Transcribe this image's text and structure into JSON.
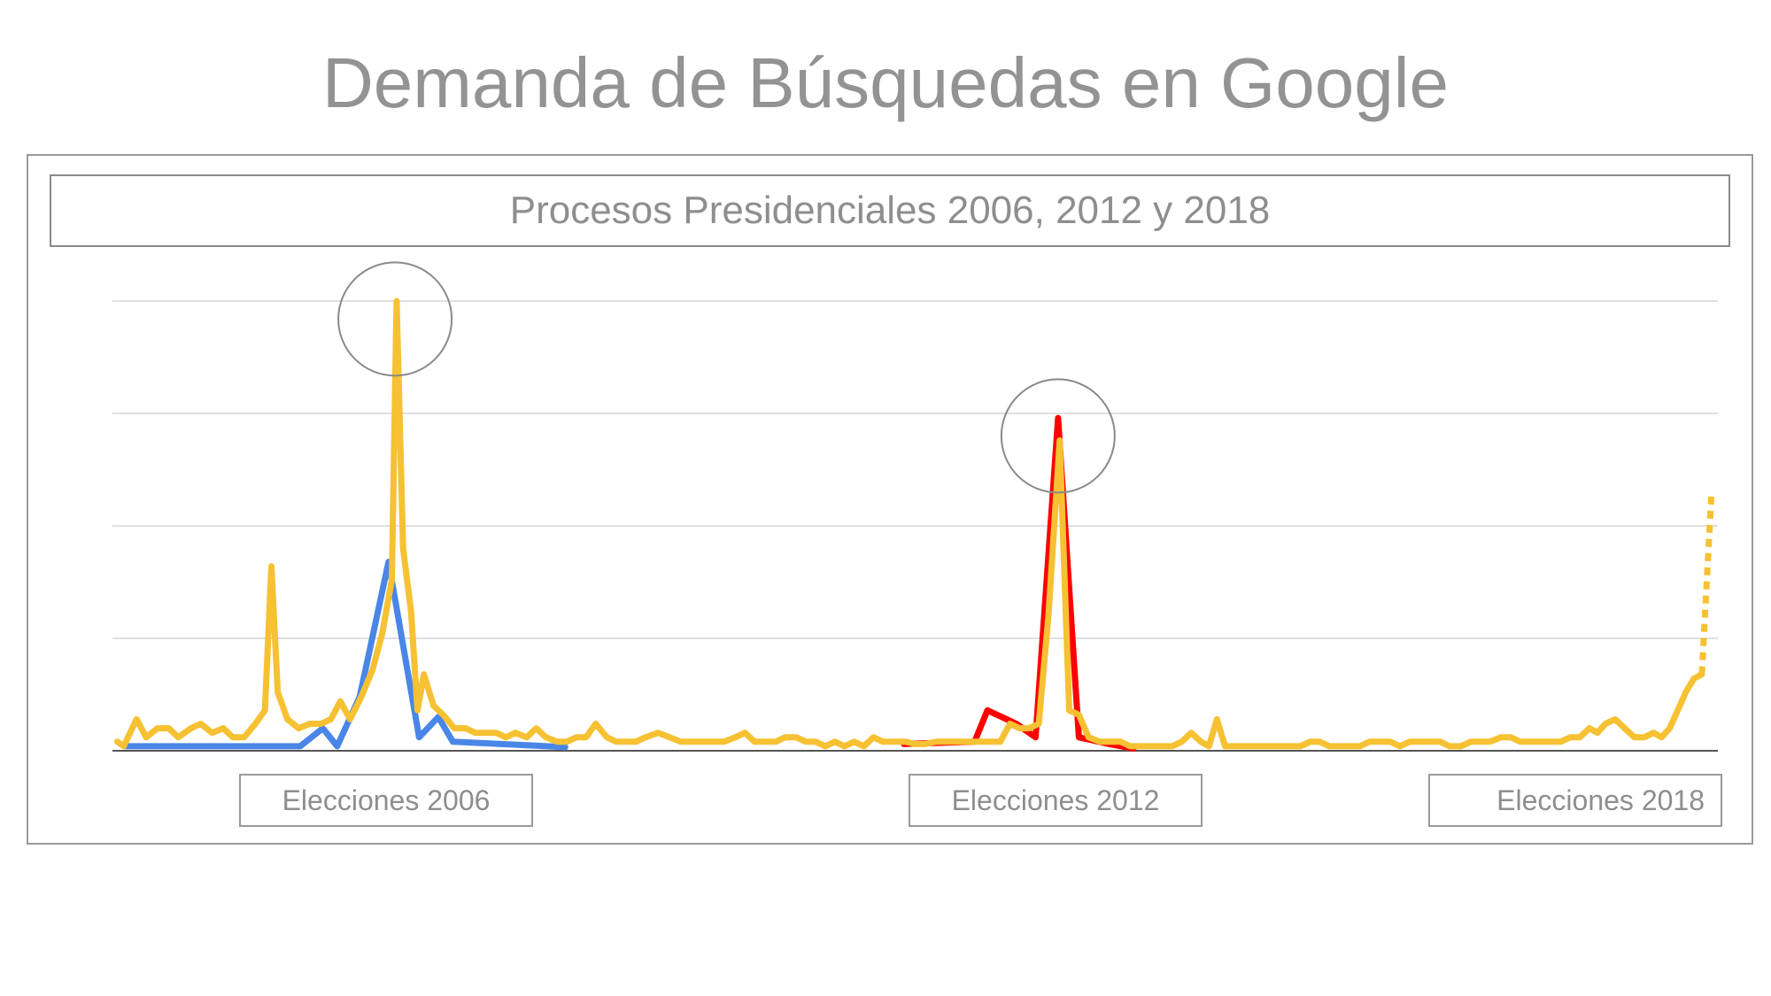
{
  "title": "Demanda de Búsquedas en Google",
  "chart_data": {
    "type": "line",
    "title": "Procesos Presidenciales 2006, 2012 y 2018",
    "xlabel": "",
    "ylabel": "",
    "x_range": [
      0,
      100
    ],
    "ylim": [
      0,
      100
    ],
    "grid": true,
    "gridlines": [
      0,
      25,
      50,
      75,
      100
    ],
    "period_labels": [
      "Elecciones 2006",
      "Elecciones 2012",
      "Elecciones 2018"
    ],
    "highlights": [
      {
        "x": 17.6,
        "y": 96
      },
      {
        "x": 58.9,
        "y": 70
      }
    ],
    "series": [
      {
        "color": "#4a86e8",
        "points": [
          [
            0.8,
            1
          ],
          [
            11.7,
            1
          ],
          [
            13.1,
            5
          ],
          [
            14.0,
            1
          ],
          [
            15.4,
            12
          ],
          [
            17.2,
            42
          ],
          [
            19.1,
            3
          ],
          [
            20.3,
            7.5
          ],
          [
            21.2,
            2
          ],
          [
            28.2,
            0.8
          ]
        ]
      },
      {
        "color": "#ff0000",
        "points": [
          [
            49.3,
            1.5
          ],
          [
            53.7,
            2
          ],
          [
            54.5,
            9
          ],
          [
            56.3,
            6
          ],
          [
            57.5,
            3
          ],
          [
            58.9,
            74
          ],
          [
            60.2,
            3
          ],
          [
            62.1,
            1.5
          ],
          [
            63.6,
            0.5
          ]
        ]
      },
      {
        "color": "#f6c132",
        "points": [
          [
            0.3,
            2
          ],
          [
            0.7,
            1
          ],
          [
            1.5,
            7
          ],
          [
            2.1,
            3
          ],
          [
            2.8,
            5
          ],
          [
            3.5,
            5
          ],
          [
            4.1,
            3
          ],
          [
            4.9,
            5
          ],
          [
            5.5,
            6
          ],
          [
            6.2,
            4
          ],
          [
            6.9,
            5
          ],
          [
            7.5,
            3
          ],
          [
            8.2,
            3
          ],
          [
            8.9,
            6
          ],
          [
            9.5,
            9
          ],
          [
            9.9,
            41
          ],
          [
            10.3,
            13
          ],
          [
            10.9,
            7
          ],
          [
            11.6,
            5
          ],
          [
            12.3,
            6
          ],
          [
            13.0,
            6
          ],
          [
            13.6,
            7
          ],
          [
            14.2,
            11
          ],
          [
            14.8,
            7
          ],
          [
            15.5,
            12
          ],
          [
            16.2,
            18
          ],
          [
            16.8,
            26
          ],
          [
            17.4,
            38
          ],
          [
            17.7,
            100
          ],
          [
            18.1,
            45
          ],
          [
            18.6,
            31
          ],
          [
            19.0,
            9
          ],
          [
            19.4,
            17
          ],
          [
            20.0,
            10
          ],
          [
            20.6,
            8
          ],
          [
            21.3,
            5
          ],
          [
            22.0,
            5
          ],
          [
            22.6,
            4
          ],
          [
            23.2,
            4
          ],
          [
            23.9,
            4
          ],
          [
            24.5,
            3
          ],
          [
            25.1,
            4
          ],
          [
            25.8,
            3
          ],
          [
            26.4,
            5
          ],
          [
            27.0,
            3
          ],
          [
            27.7,
            2
          ],
          [
            28.3,
            2
          ],
          [
            28.9,
            3
          ],
          [
            29.5,
            3
          ],
          [
            30.1,
            6
          ],
          [
            30.8,
            3
          ],
          [
            31.4,
            2
          ],
          [
            32.0,
            2
          ],
          [
            32.6,
            2
          ],
          [
            33.2,
            3
          ],
          [
            34.0,
            4
          ],
          [
            34.7,
            3
          ],
          [
            35.4,
            2
          ],
          [
            36.0,
            2
          ],
          [
            36.7,
            2
          ],
          [
            37.4,
            2
          ],
          [
            38.1,
            2
          ],
          [
            38.8,
            3
          ],
          [
            39.4,
            4
          ],
          [
            40.0,
            2
          ],
          [
            40.7,
            2
          ],
          [
            41.3,
            2
          ],
          [
            41.9,
            3
          ],
          [
            42.6,
            3
          ],
          [
            43.2,
            2
          ],
          [
            43.8,
            2
          ],
          [
            44.4,
            1
          ],
          [
            45.0,
            2
          ],
          [
            45.6,
            1
          ],
          [
            46.2,
            2
          ],
          [
            46.8,
            1
          ],
          [
            47.4,
            3
          ],
          [
            48.0,
            2
          ],
          [
            48.7,
            2
          ],
          [
            49.4,
            2
          ],
          [
            50.0,
            1.5
          ],
          [
            50.6,
            1.5
          ],
          [
            51.3,
            2
          ],
          [
            52.0,
            2
          ],
          [
            52.7,
            2
          ],
          [
            53.3,
            2
          ],
          [
            54.0,
            2
          ],
          [
            54.6,
            2
          ],
          [
            55.3,
            2
          ],
          [
            55.9,
            6
          ],
          [
            56.5,
            5
          ],
          [
            57.1,
            5
          ],
          [
            57.7,
            6
          ],
          [
            58.3,
            30
          ],
          [
            59.0,
            69
          ],
          [
            59.6,
            9
          ],
          [
            60.2,
            8
          ],
          [
            60.8,
            3
          ],
          [
            61.5,
            2
          ],
          [
            62.1,
            2
          ],
          [
            62.8,
            2
          ],
          [
            63.4,
            1
          ],
          [
            64.0,
            1
          ],
          [
            64.7,
            1
          ],
          [
            65.3,
            1
          ],
          [
            66.0,
            1
          ],
          [
            66.6,
            2
          ],
          [
            67.2,
            4
          ],
          [
            67.8,
            2
          ],
          [
            68.3,
            1
          ],
          [
            68.8,
            7
          ],
          [
            69.3,
            1
          ],
          [
            70.0,
            1
          ],
          [
            70.7,
            1
          ],
          [
            71.4,
            1
          ],
          [
            72.0,
            1
          ],
          [
            72.7,
            1
          ],
          [
            73.3,
            1
          ],
          [
            74.0,
            1
          ],
          [
            74.6,
            2
          ],
          [
            75.2,
            2
          ],
          [
            75.8,
            1
          ],
          [
            76.5,
            1
          ],
          [
            77.1,
            1
          ],
          [
            77.7,
            1
          ],
          [
            78.3,
            2
          ],
          [
            79.0,
            2
          ],
          [
            79.6,
            2
          ],
          [
            80.2,
            1
          ],
          [
            80.8,
            2
          ],
          [
            81.5,
            2
          ],
          [
            82.1,
            2
          ],
          [
            82.7,
            2
          ],
          [
            83.3,
            1
          ],
          [
            84.0,
            1
          ],
          [
            84.6,
            2
          ],
          [
            85.2,
            2
          ],
          [
            85.8,
            2
          ],
          [
            86.5,
            3
          ],
          [
            87.1,
            3
          ],
          [
            87.7,
            2
          ],
          [
            88.3,
            2
          ],
          [
            89.0,
            2
          ],
          [
            89.6,
            2
          ],
          [
            90.2,
            2
          ],
          [
            90.8,
            3
          ],
          [
            91.4,
            3
          ],
          [
            92.0,
            5
          ],
          [
            92.5,
            4
          ],
          [
            93.0,
            6
          ],
          [
            93.6,
            7
          ],
          [
            94.2,
            5
          ],
          [
            94.8,
            3
          ],
          [
            95.4,
            3
          ],
          [
            96.0,
            4
          ],
          [
            96.5,
            3
          ],
          [
            97.0,
            5
          ],
          [
            97.5,
            9
          ],
          [
            98.0,
            13
          ],
          [
            98.5,
            16
          ],
          [
            99.0,
            17
          ]
        ]
      },
      {
        "color": "#f6c132",
        "style": "dotted",
        "points": [
          [
            99.0,
            17
          ],
          [
            99.6,
            57
          ]
        ]
      }
    ]
  }
}
